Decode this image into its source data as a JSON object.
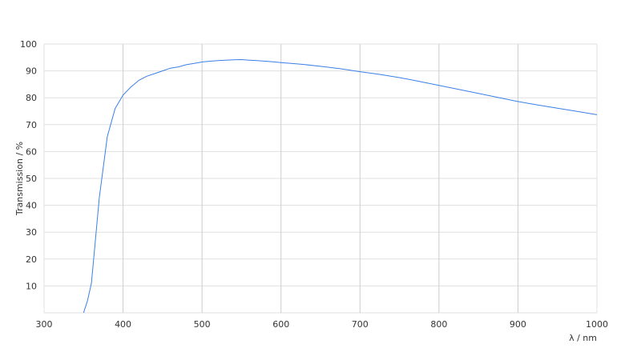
{
  "chart_data": {
    "type": "line",
    "title": "",
    "xlabel": "λ / nm",
    "ylabel": "Transmission / %",
    "xlim": [
      300,
      1000
    ],
    "ylim": [
      0,
      100
    ],
    "xticks": [
      300,
      400,
      500,
      600,
      700,
      800,
      900,
      1000
    ],
    "yticks": [
      10,
      20,
      30,
      40,
      50,
      60,
      70,
      80,
      90,
      100
    ],
    "grid": true,
    "line_color": "#3b7fe8",
    "series": [
      {
        "x": [
          350,
          355,
          360,
          370,
          380,
          390,
          400,
          410,
          420,
          430,
          440,
          450,
          460,
          470,
          480,
          490,
          500,
          510,
          520,
          530,
          540,
          550,
          560,
          570,
          580,
          590,
          600,
          625,
          650,
          675,
          700,
          725,
          750,
          775,
          800,
          825,
          850,
          875,
          900,
          925,
          950,
          975,
          1000
        ],
        "y": [
          0,
          4.5,
          11,
          43,
          65.5,
          76,
          81,
          84,
          86.5,
          88,
          89,
          90,
          91,
          91.5,
          92.3,
          92.8,
          93.3,
          93.6,
          93.8,
          94,
          94.1,
          94.2,
          94,
          93.8,
          93.6,
          93.4,
          93.1,
          92.5,
          91.7,
          90.8,
          89.7,
          88.7,
          87.5,
          86.1,
          84.6,
          83.1,
          81.6,
          80.1,
          78.6,
          77.3,
          76.1,
          74.9,
          73.7
        ]
      }
    ]
  }
}
